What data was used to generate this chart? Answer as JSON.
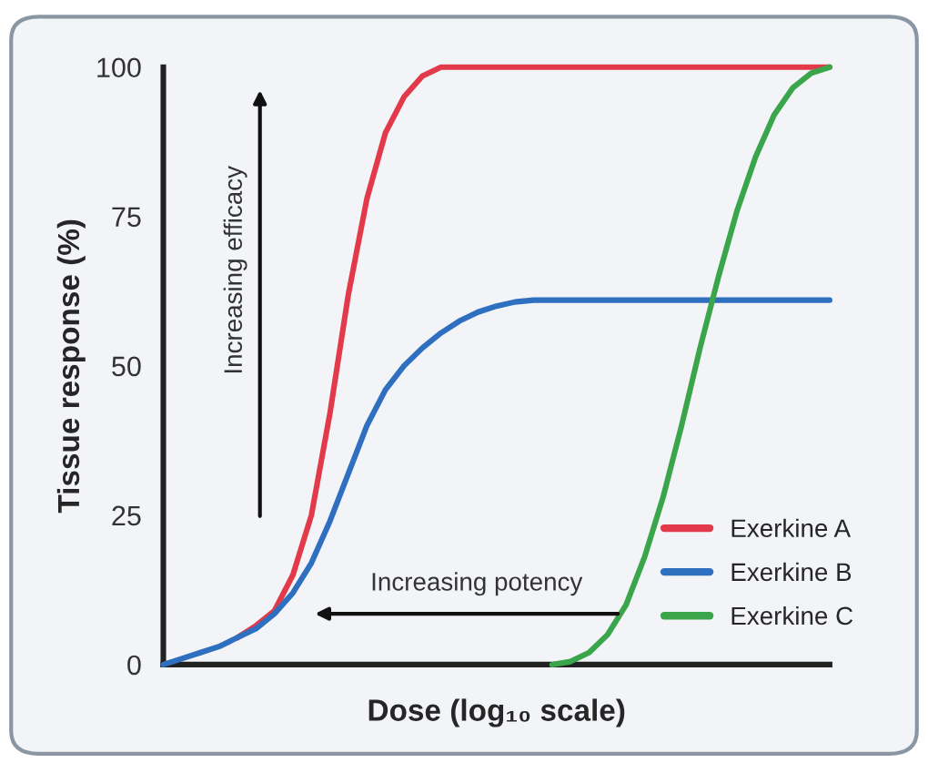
{
  "chart_data": {
    "type": "line",
    "xlabel": "Dose (log₁₀ scale)",
    "ylabel": "Tissue response (%)",
    "categories": [
      null,
      null,
      null,
      null,
      null,
      null,
      null,
      null,
      null,
      null,
      null,
      null,
      null,
      null,
      null,
      null,
      null,
      null,
      null,
      null,
      null,
      null,
      null,
      null,
      null,
      null,
      null,
      null,
      null,
      null,
      null,
      null,
      null,
      null,
      null,
      null,
      null
    ],
    "series": [
      {
        "name": "Exerkine A",
        "color": "#e23a4a",
        "values": [
          null,
          null,
          null,
          null,
          4.5,
          6.5,
          9,
          15,
          25,
          42,
          62,
          78,
          89,
          95,
          98.5,
          100,
          100,
          100,
          100,
          100,
          100,
          100,
          100,
          100,
          100,
          100,
          100,
          100,
          100,
          100,
          100,
          100,
          100,
          100,
          100,
          100,
          100
        ]
      },
      {
        "name": "Exerkine B",
        "color": "#2f6fc0",
        "values": [
          0,
          1,
          2,
          3,
          4.5,
          6,
          8.5,
          12,
          17,
          24,
          32,
          40,
          46,
          50,
          53,
          55.5,
          57.5,
          59,
          60,
          60.7,
          61,
          61,
          61,
          61,
          61,
          61,
          61,
          61,
          61,
          61,
          61,
          61,
          61,
          61,
          61,
          61,
          61
        ]
      },
      {
        "name": "Exerkine C",
        "color": "#3aa54a",
        "values": [
          null,
          null,
          null,
          null,
          null,
          null,
          null,
          null,
          null,
          null,
          null,
          null,
          null,
          null,
          null,
          null,
          null,
          null,
          null,
          null,
          null,
          0,
          0.5,
          2,
          5,
          10,
          18,
          28,
          40,
          53,
          65,
          76,
          85,
          92,
          96.5,
          99,
          100
        ]
      }
    ],
    "ylim": [
      0,
      100
    ],
    "yticks": [
      0,
      25,
      50,
      75,
      100
    ],
    "grid": false,
    "legend": "bottom right",
    "marker": "none",
    "line_style": "solid",
    "annotations": [
      "Increasing efficacy",
      "Increasing potency"
    ]
  }
}
